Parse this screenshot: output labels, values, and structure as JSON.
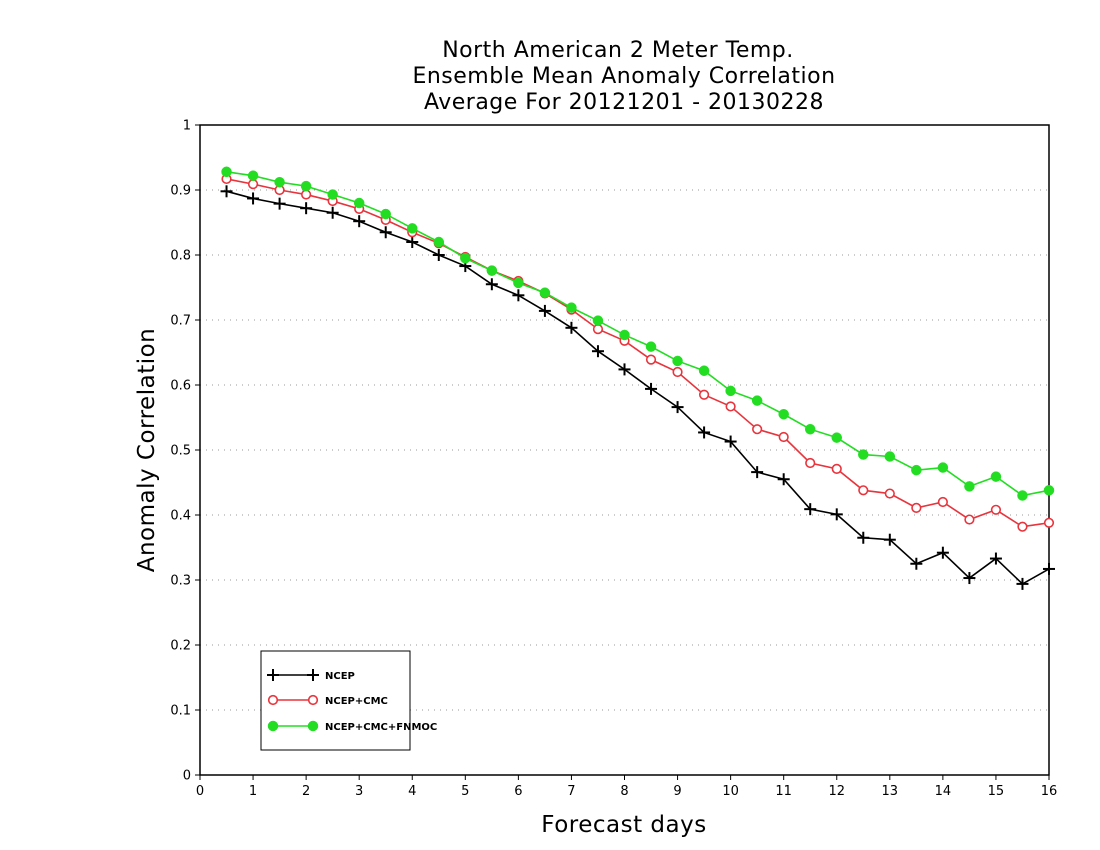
{
  "chart_data": {
    "type": "line",
    "title": [
      "North American 2 Meter Temp.",
      "Ensemble Mean Anomaly Correlation",
      "Average For 20121201 - 20130228"
    ],
    "xlabel": "Forecast days",
    "ylabel": "Anomaly Correlation",
    "xlim": [
      0,
      16
    ],
    "ylim": [
      0,
      1
    ],
    "x_ticks": [
      "0",
      "1",
      "2",
      "3",
      "4",
      "5",
      "6",
      "7",
      "8",
      "9",
      "10",
      "11",
      "12",
      "13",
      "14",
      "15",
      "16"
    ],
    "y_ticks": [
      "0",
      "0.1",
      "0.2",
      "0.3",
      "0.4",
      "0.5",
      "0.6",
      "0.7",
      "0.8",
      "0.9",
      "1"
    ],
    "grid": "horizontal dotted",
    "legend_position": "bottom-left",
    "x": [
      0.5,
      1,
      1.5,
      2,
      2.5,
      3,
      3.5,
      4,
      4.5,
      5,
      5.5,
      6,
      6.5,
      7,
      7.5,
      8,
      8.5,
      9,
      9.5,
      10,
      10.5,
      11,
      11.5,
      12,
      12.5,
      13,
      13.5,
      14,
      14.5,
      15,
      15.5,
      16
    ],
    "series": [
      {
        "name": "NCEP",
        "color": "#000000",
        "marker": "plus",
        "values": [
          0.898,
          0.887,
          0.879,
          0.872,
          0.865,
          0.852,
          0.835,
          0.82,
          0.8,
          0.783,
          0.755,
          0.738,
          0.714,
          0.688,
          0.652,
          0.624,
          0.594,
          0.566,
          0.527,
          0.513,
          0.466,
          0.455,
          0.409,
          0.401,
          0.365,
          0.362,
          0.325,
          0.342,
          0.303,
          0.333,
          0.294,
          0.317
        ]
      },
      {
        "name": "NCEP+CMC",
        "color": "#e8343c",
        "marker": "open-circle",
        "values": [
          0.917,
          0.909,
          0.9,
          0.893,
          0.883,
          0.871,
          0.854,
          0.835,
          0.818,
          0.797,
          0.776,
          0.76,
          0.741,
          0.716,
          0.686,
          0.668,
          0.639,
          0.62,
          0.585,
          0.567,
          0.532,
          0.52,
          0.48,
          0.471,
          0.438,
          0.433,
          0.411,
          0.42,
          0.393,
          0.408,
          0.382,
          0.388
        ]
      },
      {
        "name": "NCEP+CMC+FNMOC",
        "color": "#22dd22",
        "marker": "filled-circle",
        "values": [
          0.928,
          0.922,
          0.912,
          0.906,
          0.893,
          0.88,
          0.863,
          0.841,
          0.82,
          0.795,
          0.776,
          0.757,
          0.742,
          0.719,
          0.699,
          0.677,
          0.659,
          0.637,
          0.622,
          0.591,
          0.576,
          0.555,
          0.532,
          0.519,
          0.493,
          0.49,
          0.469,
          0.473,
          0.444,
          0.459,
          0.43,
          0.438
        ]
      }
    ]
  }
}
